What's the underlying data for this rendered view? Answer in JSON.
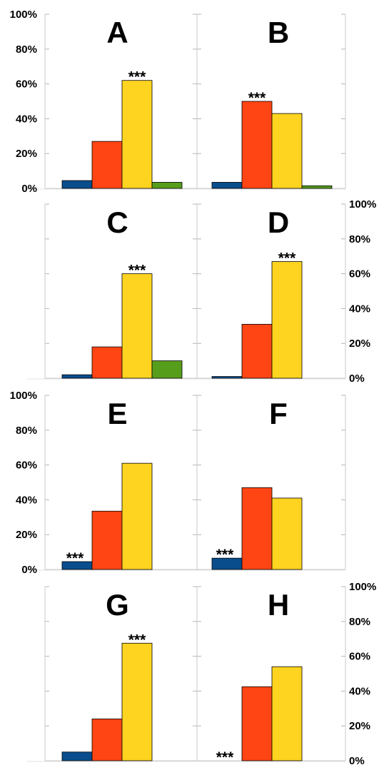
{
  "colors": {
    "blue": "#0a4d8c",
    "orange": "#ff4514",
    "yellow": "#ffd420",
    "green": "#579d1c",
    "grid": "#c9c9c9",
    "tick_mark": "#b4b4b4"
  },
  "y_ticks": [
    "0%",
    "20%",
    "40%",
    "60%",
    "80%",
    "100%"
  ],
  "chart_data": [
    {
      "type": "bar",
      "title": "A",
      "ylim": [
        0,
        100
      ],
      "axis_side": "left",
      "values": [
        4.5,
        27,
        62,
        3.5
      ],
      "colors": [
        "blue",
        "orange",
        "yellow",
        "green"
      ],
      "significance": {
        "bar": 2,
        "label": "***"
      }
    },
    {
      "type": "bar",
      "title": "B",
      "ylim": [
        0,
        100
      ],
      "axis_side": "none",
      "values": [
        3.5,
        50,
        43,
        1.5
      ],
      "colors": [
        "blue",
        "orange",
        "yellow",
        "green"
      ],
      "significance": {
        "bar": 1,
        "label": "***"
      }
    },
    {
      "type": "bar",
      "title": "C",
      "ylim": [
        0,
        100
      ],
      "axis_side": "none",
      "values": [
        2,
        18,
        60,
        10
      ],
      "colors": [
        "blue",
        "orange",
        "yellow",
        "green"
      ],
      "significance": {
        "bar": 2,
        "label": "***"
      }
    },
    {
      "type": "bar",
      "title": "D",
      "ylim": [
        0,
        100
      ],
      "axis_side": "right",
      "values": [
        1,
        31,
        67
      ],
      "colors": [
        "blue",
        "orange",
        "yellow"
      ],
      "significance": {
        "bar": 2,
        "label": "***"
      }
    },
    {
      "type": "bar",
      "title": "E",
      "ylim": [
        0,
        100
      ],
      "axis_side": "left",
      "values": [
        4.5,
        33.5,
        61
      ],
      "colors": [
        "blue",
        "orange",
        "yellow"
      ],
      "significance": {
        "bar": 0,
        "label": "***"
      }
    },
    {
      "type": "bar",
      "title": "F",
      "ylim": [
        0,
        100
      ],
      "axis_side": "none",
      "values": [
        6.5,
        47,
        41
      ],
      "colors": [
        "blue",
        "orange",
        "yellow"
      ],
      "significance": {
        "bar": 0,
        "label": "***"
      }
    },
    {
      "type": "bar",
      "title": "G",
      "ylim": [
        0,
        100
      ],
      "axis_side": "none",
      "values": [
        5,
        24,
        67.5
      ],
      "colors": [
        "blue",
        "orange",
        "yellow"
      ],
      "significance": {
        "bar": 2,
        "label": "***"
      }
    },
    {
      "type": "bar",
      "title": "H",
      "ylim": [
        0,
        100
      ],
      "axis_side": "right",
      "values": [
        0,
        42.5,
        54
      ],
      "colors": [
        "blue",
        "orange",
        "yellow"
      ],
      "significance": {
        "bar": 0,
        "label": "***"
      }
    }
  ]
}
